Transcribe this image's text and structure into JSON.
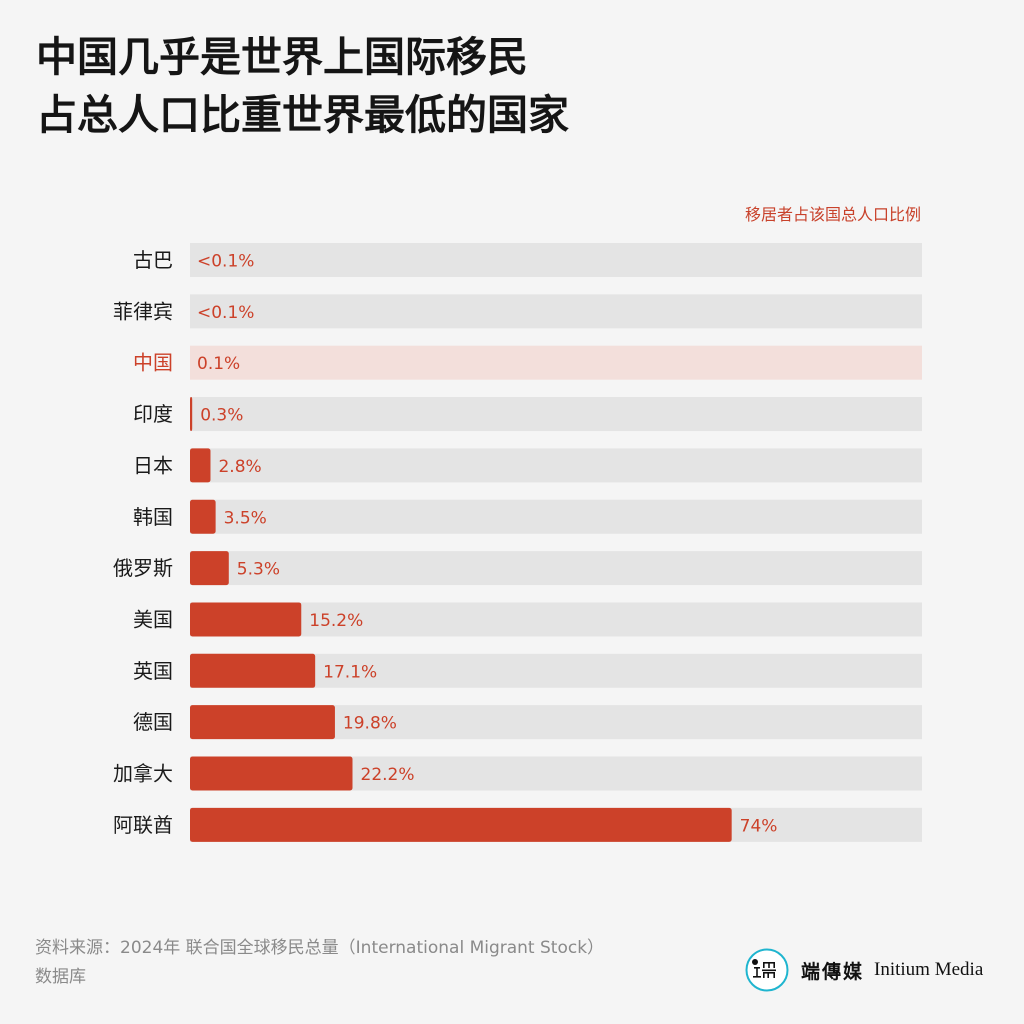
{
  "title_lines": [
    "中国几乎是世界上国际移民",
    "占总人口比重世界最低的国家"
  ],
  "unit_label": "移居者占该国总人口比例",
  "source_line1": "资料来源：2024年 联合国全球移民总量（International Migrant Stock）",
  "source_line2": "数据库",
  "brand": {
    "name_cn": "端傳媒",
    "name_en": "Initium Media",
    "logo_icon": "initium-logo-icon"
  },
  "colors": {
    "bar": "#cc4129",
    "track": "#e4e4e4",
    "highlight_track": "#f3dfdb",
    "highlight_text": "#cc4129",
    "value_text": "#cc4129",
    "category_text": "#1a1a1a",
    "background": "#f5f5f5"
  },
  "chart_data": {
    "type": "bar",
    "orientation": "horizontal",
    "title": "中国几乎是世界上国际移民占总人口比重世界最低的国家",
    "value_axis_label": "移居者占该国总人口比例",
    "xlim": [
      0,
      100
    ],
    "unit": "%",
    "highlight": "中国",
    "categories": [
      "古巴",
      "菲律宾",
      "中国",
      "印度",
      "日本",
      "韩国",
      "俄罗斯",
      "美国",
      "英国",
      "德国",
      "加拿大",
      "阿联酋"
    ],
    "values": [
      0.05,
      0.05,
      0.1,
      0.3,
      2.8,
      3.5,
      5.3,
      15.2,
      17.1,
      19.8,
      22.2,
      74
    ],
    "value_labels": [
      "<0.1%",
      "<0.1%",
      "0.1%",
      "0.3%",
      "2.8%",
      "3.5%",
      "5.3%",
      "15.2%",
      "17.1%",
      "19.8%",
      "22.2%",
      "74%"
    ]
  }
}
